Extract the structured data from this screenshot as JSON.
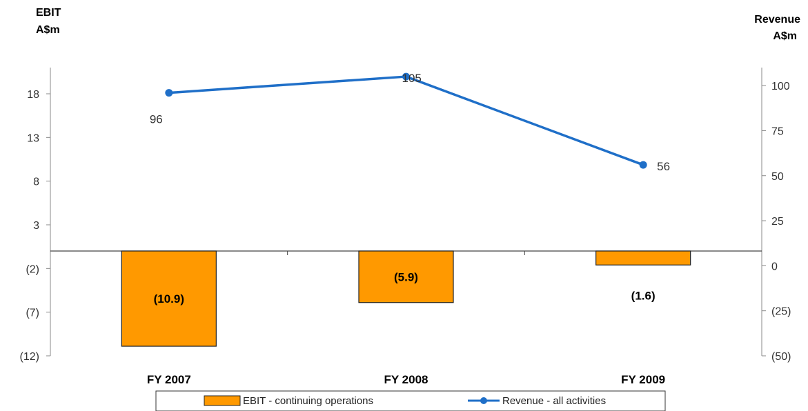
{
  "chart_data": {
    "type": "bar+line",
    "left_axis_title": [
      "EBIT",
      "A$m"
    ],
    "right_axis_title": [
      "Revenue",
      "A$m"
    ],
    "categories": [
      "FY 2007",
      "FY 2008",
      "FY 2009"
    ],
    "left_axis": {
      "ylim": [
        -12,
        21
      ],
      "ticks": [
        18,
        13,
        8,
        3,
        -2,
        -7,
        -12
      ],
      "tick_labels": [
        "18",
        "13",
        "8",
        "3",
        "(2)",
        "(7)",
        "(12)"
      ]
    },
    "right_axis": {
      "ylim": [
        -50,
        110
      ],
      "ticks": [
        100,
        75,
        50,
        25,
        0,
        -25,
        -50
      ],
      "tick_labels": [
        "100",
        "75",
        "50",
        "25",
        "0",
        "(25)",
        "(50)"
      ]
    },
    "series": [
      {
        "name": "EBIT - continuing operations",
        "type": "bar",
        "axis": "left",
        "color": "#FF9900",
        "values": [
          -10.9,
          -5.9,
          -1.6
        ],
        "labels": [
          "(10.9)",
          "(5.9)",
          "(1.6)"
        ]
      },
      {
        "name": "Revenue - all activities",
        "type": "line",
        "axis": "right",
        "color": "#1F6FC8",
        "values": [
          96,
          105,
          56
        ],
        "labels": [
          "96",
          "105",
          "56"
        ]
      }
    ],
    "legend_position": "bottom"
  }
}
